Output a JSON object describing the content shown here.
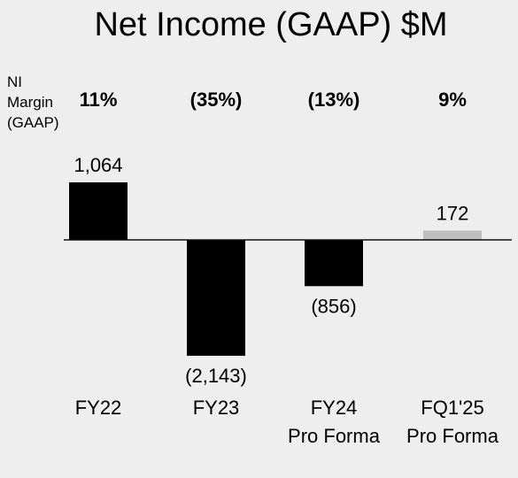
{
  "chart_data": {
    "type": "bar",
    "title": "Net Income (GAAP) $M",
    "margin_header": [
      "NI",
      "Margin",
      "(GAAP)"
    ],
    "categories": [
      [
        "FY22"
      ],
      [
        "FY23"
      ],
      [
        "FY24",
        "Pro Forma"
      ],
      [
        "FQ1'25",
        "Pro Forma"
      ]
    ],
    "values": [
      1064,
      -2143,
      -856,
      172
    ],
    "value_labels": [
      "1,064",
      "(2,143)",
      "(856)",
      "172"
    ],
    "margins": [
      "11%",
      "(35%)",
      "(13%)",
      "9%"
    ],
    "bar_colors": [
      "#000000",
      "#000000",
      "#000000",
      "#bfbfbf"
    ],
    "zero_line": true,
    "grid": false,
    "legend": "none"
  }
}
